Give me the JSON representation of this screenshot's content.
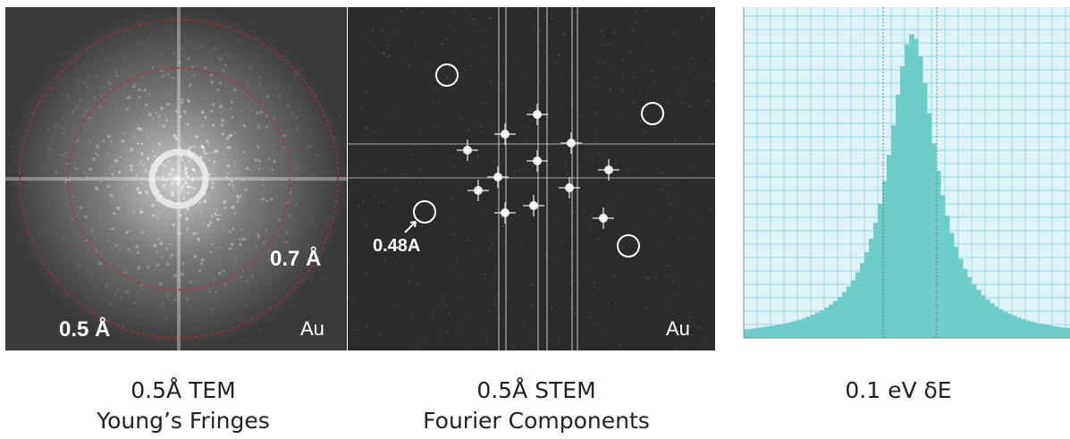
{
  "panels": {
    "tem": {
      "ring_outer_label": "0.5 Å",
      "ring_inner_label": "0.7 Å",
      "element_label": "Au",
      "caption_line1": "0.5Å TEM",
      "caption_line2": "Young’s Fringes"
    },
    "stem": {
      "spot_label": "0.48A",
      "element_label": "Au",
      "caption_line1": "0.5Å STEM",
      "caption_line2": "Fourier Components"
    },
    "eels": {
      "caption_line1": "0.1 eV δE"
    }
  },
  "colors": {
    "ring": "#b03030",
    "histogram_fill": "#6fcdc9",
    "histogram_bg": "#dff3f6",
    "histogram_grid": "#7fd0e0"
  }
}
